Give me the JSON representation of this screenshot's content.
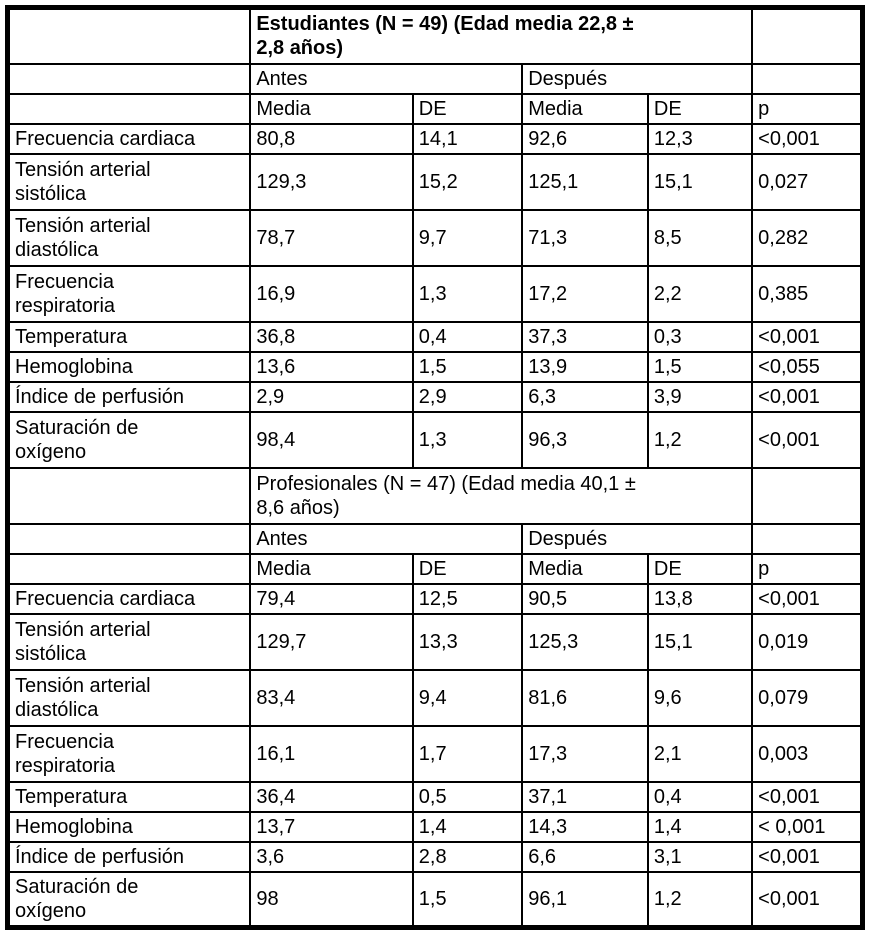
{
  "table": {
    "headers": {
      "antes": "Antes",
      "despues": "Después",
      "media": "Media",
      "de": "DE",
      "p": "p"
    },
    "sections": [
      {
        "title": "Estudiantes (N = 49) (Edad media 22,8 ±\n2,8 años)",
        "title_bold": true,
        "rows": [
          {
            "label": "Frecuencia cardiaca",
            "cells": [
              "80,8",
              "14,1",
              "92,6",
              "12,3",
              "<0,001"
            ]
          },
          {
            "label": "Tensión arterial\nsistólica",
            "cells": [
              "129,3",
              "15,2",
              "125,1",
              "15,1",
              "0,027"
            ]
          },
          {
            "label": "Tensión arterial\ndiastólica",
            "cells": [
              "78,7",
              "9,7",
              "71,3",
              "8,5",
              "0,282"
            ]
          },
          {
            "label": "Frecuencia\nrespiratoria",
            "cells": [
              "16,9",
              "1,3",
              "17,2",
              "2,2",
              "0,385"
            ]
          },
          {
            "label": "Temperatura",
            "cells": [
              "36,8",
              "0,4",
              "37,3",
              "0,3",
              "<0,001"
            ]
          },
          {
            "label": "Hemoglobina",
            "cells": [
              "13,6",
              "1,5",
              "13,9",
              "1,5",
              "<0,055"
            ]
          },
          {
            "label": "Índice de perfusión",
            "cells": [
              "2,9",
              "2,9",
              "6,3",
              "3,9",
              "<0,001"
            ]
          },
          {
            "label": "Saturación de\noxígeno",
            "cells": [
              "98,4",
              "1,3",
              "96,3",
              "1,2",
              "<0,001"
            ]
          }
        ]
      },
      {
        "title": "Profesionales (N = 47) (Edad media 40,1 ±\n8,6 años)",
        "title_bold": false,
        "rows": [
          {
            "label": "Frecuencia cardiaca",
            "cells": [
              "79,4",
              "12,5",
              "90,5",
              "13,8",
              "<0,001"
            ]
          },
          {
            "label": "Tensión arterial\nsistólica",
            "cells": [
              "129,7",
              "13,3",
              "125,3",
              "15,1",
              "0,019"
            ]
          },
          {
            "label": "Tensión arterial\ndiastólica",
            "cells": [
              "83,4",
              "9,4",
              "81,6",
              "9,6",
              "0,079"
            ]
          },
          {
            "label": "Frecuencia\nrespiratoria",
            "cells": [
              "16,1",
              "1,7",
              "17,3",
              "2,1",
              "0,003"
            ]
          },
          {
            "label": "Temperatura",
            "cells": [
              "36,4",
              "0,5",
              "37,1",
              "0,4",
              "<0,001"
            ]
          },
          {
            "label": "Hemoglobina",
            "cells": [
              "13,7",
              "1,4",
              "14,3",
              "1,4",
              "< 0,001"
            ]
          },
          {
            "label": "Índice de perfusión",
            "cells": [
              "3,6",
              "2,8",
              "6,6",
              "3,1",
              "<0,001"
            ]
          },
          {
            "label": "Saturación de\noxígeno",
            "cells": [
              "98",
              "1,5",
              "96,1",
              "1,2",
              "<0,001"
            ]
          }
        ]
      }
    ]
  }
}
